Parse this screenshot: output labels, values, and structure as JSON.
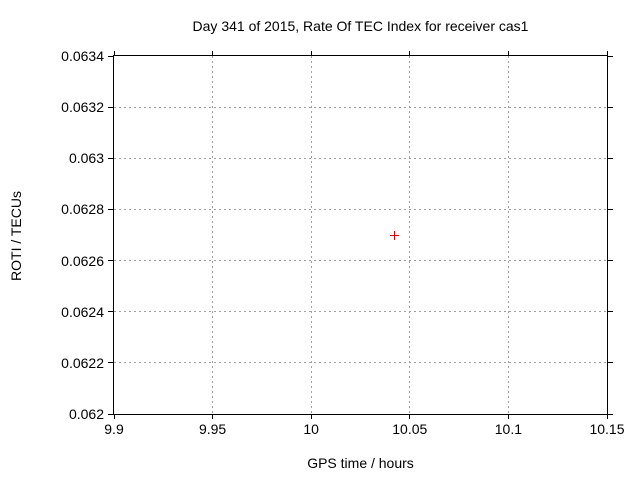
{
  "chart_data": {
    "type": "scatter",
    "title": "Day 341 of 2015, Rate Of TEC Index for receiver cas1",
    "xlabel": "GPS time / hours",
    "ylabel": "ROTI / TECUs",
    "xlim": [
      9.9,
      10.15
    ],
    "ylim": [
      0.062,
      0.0634
    ],
    "xticks": {
      "values": [
        9.9,
        9.95,
        10.0,
        10.05,
        10.1,
        10.15
      ],
      "labels": [
        "9.9",
        "9.95",
        "10",
        "10.05",
        "10.1",
        "10.15"
      ]
    },
    "yticks": {
      "values": [
        0.062,
        0.0622,
        0.0624,
        0.0626,
        0.0628,
        0.063,
        0.0632,
        0.0634
      ],
      "labels": [
        "0.062",
        "0.0622",
        "0.0624",
        "0.0626",
        "0.0628",
        "0.063",
        "0.0632",
        "0.0634"
      ]
    },
    "grid": true,
    "grid_style": "dashed",
    "legend_position": "none",
    "series": [
      {
        "name": "ROTI",
        "marker": "plus",
        "color": "#e00000",
        "points": [
          {
            "x": 10.042,
            "y": 0.0627
          }
        ]
      }
    ],
    "colors": {
      "background": "#ffffff",
      "plot_border": "#000000",
      "grid": "#a0a0a0",
      "text": "#000000"
    }
  }
}
